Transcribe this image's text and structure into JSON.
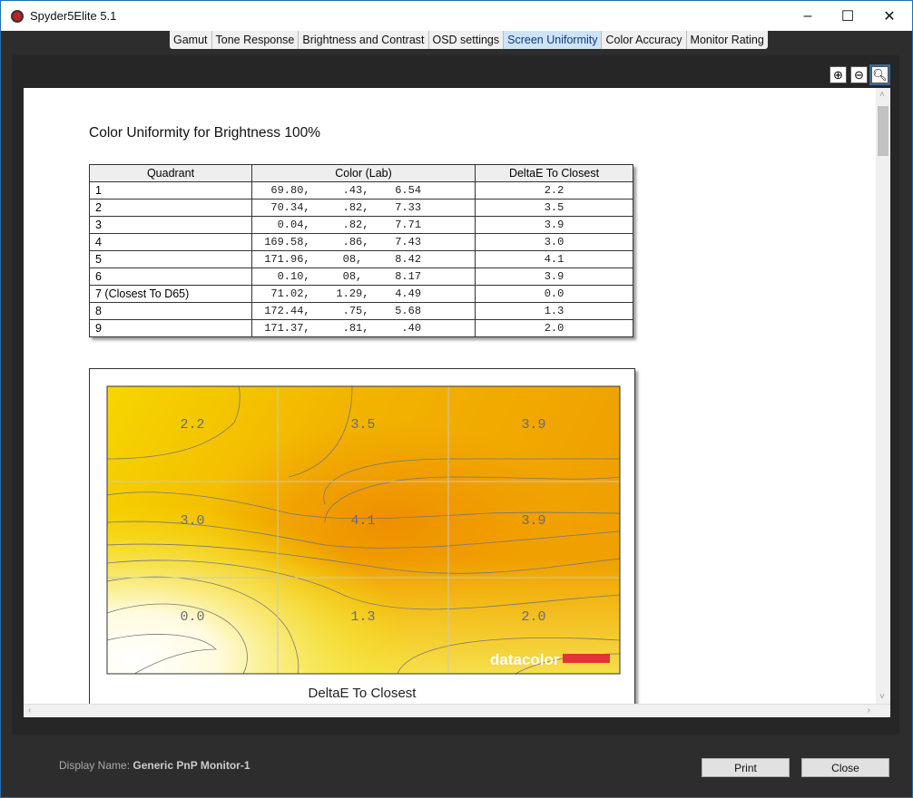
{
  "window": {
    "title": "Spyder5Elite 5.1",
    "minimize": "–",
    "maximize": "☐",
    "close": "✕"
  },
  "tabs": [
    {
      "label": "Gamut"
    },
    {
      "label": "Tone Response"
    },
    {
      "label": "Brightness and Contrast"
    },
    {
      "label": "OSD settings"
    },
    {
      "label": "Screen Uniformity",
      "active": true
    },
    {
      "label": "Color Accuracy"
    },
    {
      "label": "Monitor Rating"
    }
  ],
  "zoom_icons": [
    "zoom-in-icon",
    "zoom-out-icon",
    "zoom-fit-icon"
  ],
  "report": {
    "title": "Color Uniformity for Brightness 100%",
    "columns": [
      "Quadrant",
      "Color (Lab)",
      "DeltaE To Closest"
    ],
    "rows": [
      {
        "quadrant": "1",
        "lab": "  69.80,     .43,    6.54",
        "delta": "2.2"
      },
      {
        "quadrant": "2",
        "lab": "  70.34,     .82,    7.33",
        "delta": "3.5"
      },
      {
        "quadrant": "3",
        "lab": "   0.04,     .82,    7.71",
        "delta": "3.9"
      },
      {
        "quadrant": "4",
        "lab": " 169.58,     .86,    7.43",
        "delta": "3.0"
      },
      {
        "quadrant": "5",
        "lab": " 171.96,     08,     8.42",
        "delta": "4.1"
      },
      {
        "quadrant": "6",
        "lab": "   0.10,     08,     8.17",
        "delta": "3.9"
      },
      {
        "quadrant": "7 (Closest To D65)",
        "lab": "  71.02,    1.29,    4.49",
        "delta": "0.0"
      },
      {
        "quadrant": "8",
        "lab": " 172.44,     .75,    5.68",
        "delta": "1.3"
      },
      {
        "quadrant": "9",
        "lab": " 171.37,     .81,     .40",
        "delta": "2.0"
      }
    ]
  },
  "chart": {
    "caption": "DeltaE To Closest",
    "logo": "datacolor",
    "grid_values": [
      [
        "2.2",
        "3.5",
        "3.9"
      ],
      [
        "3.0",
        "4.1",
        "3.9"
      ],
      [
        "0.0",
        "1.3",
        "2.0"
      ]
    ],
    "colors": {
      "high": "#f0a000",
      "mid": "#f5d800",
      "low": "#ffffff",
      "logo_bar": "#e8303a"
    }
  },
  "footer": {
    "display_label": "Display Name:",
    "display_value": "Generic PnP Monitor-1",
    "print": "Print",
    "close": "Close"
  }
}
